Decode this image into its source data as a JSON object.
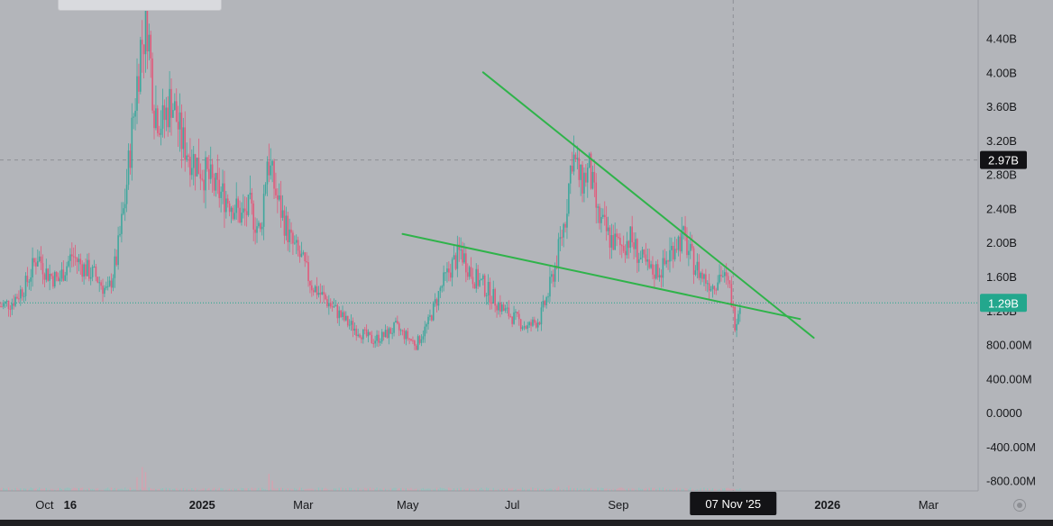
{
  "chart_data": {
    "type": "candlestick",
    "yaxis": {
      "ticks": [
        "4.40B",
        "4.00B",
        "3.60B",
        "3.20B",
        "2.80B",
        "2.40B",
        "2.00B",
        "1.60B",
        "1.20B",
        "800.00M",
        "400.00M",
        "0.0000",
        "-400.00M",
        "-800.00M"
      ],
      "tick_values": [
        4.4,
        4.0,
        3.6,
        3.2,
        2.8,
        2.4,
        2.0,
        1.6,
        1.2,
        0.8,
        0.4,
        0.0,
        -0.4,
        -0.8
      ],
      "ylim_billions": [
        -0.92,
        4.85
      ]
    },
    "xaxis": {
      "labels": [
        {
          "text": "Oct",
          "date": "2024-10-01",
          "bold": false
        },
        {
          "text": "16",
          "date": "2024-10-16",
          "bold": true
        },
        {
          "text": "2025",
          "date": "2025-01-01",
          "bold": true
        },
        {
          "text": "Mar",
          "date": "2025-03-01",
          "bold": false
        },
        {
          "text": "May",
          "date": "2025-05-01",
          "bold": false
        },
        {
          "text": "Jul",
          "date": "2025-07-01",
          "bold": false
        },
        {
          "text": "Sep",
          "date": "2025-09-01",
          "bold": false
        },
        {
          "text": "2026",
          "date": "2026-01-01",
          "bold": true
        },
        {
          "text": "Mar",
          "date": "2026-03-01",
          "bold": false
        }
      ],
      "xlim": [
        "2024-09-05",
        "2026-03-30"
      ]
    },
    "price_markers": [
      {
        "label": "2.97B",
        "value": 2.97,
        "style": "dark"
      },
      {
        "label": "1.29B",
        "value": 1.29,
        "style": "green"
      }
    ],
    "crosshair": {
      "date_label": "07 Nov '25",
      "date": "2025-11-07",
      "value": 2.97
    },
    "series_close_points": [
      [
        "2024-09-05",
        1.25
      ],
      [
        "2024-09-12",
        1.3
      ],
      [
        "2024-09-20",
        1.5
      ],
      [
        "2024-09-27",
        1.85
      ],
      [
        "2024-10-02",
        1.65
      ],
      [
        "2024-10-09",
        1.55
      ],
      [
        "2024-10-17",
        1.85
      ],
      [
        "2024-10-24",
        1.7
      ],
      [
        "2024-10-31",
        1.6
      ],
      [
        "2024-11-07",
        1.4
      ],
      [
        "2024-11-12",
        1.8
      ],
      [
        "2024-11-17",
        2.5
      ],
      [
        "2024-11-22",
        3.5
      ],
      [
        "2024-11-26",
        4.3
      ],
      [
        "2024-11-30",
        4.6
      ],
      [
        "2024-12-04",
        3.6
      ],
      [
        "2024-12-09",
        3.4
      ],
      [
        "2024-12-14",
        3.7
      ],
      [
        "2024-12-20",
        3.2
      ],
      [
        "2024-12-26",
        3.0
      ],
      [
        "2025-01-03",
        2.8
      ],
      [
        "2025-01-10",
        2.6
      ],
      [
        "2025-01-17",
        2.5
      ],
      [
        "2025-01-24",
        2.3
      ],
      [
        "2025-01-29",
        2.4
      ],
      [
        "2025-02-04",
        2.1
      ],
      [
        "2025-02-08",
        3.0
      ],
      [
        "2025-02-14",
        2.5
      ],
      [
        "2025-02-22",
        2.0
      ],
      [
        "2025-02-28",
        1.8
      ],
      [
        "2025-03-06",
        1.5
      ],
      [
        "2025-03-13",
        1.35
      ],
      [
        "2025-03-20",
        1.2
      ],
      [
        "2025-03-27",
        1.05
      ],
      [
        "2025-04-03",
        0.95
      ],
      [
        "2025-04-10",
        0.85
      ],
      [
        "2025-04-17",
        0.9
      ],
      [
        "2025-04-24",
        1.0
      ],
      [
        "2025-04-30",
        0.9
      ],
      [
        "2025-05-06",
        0.8
      ],
      [
        "2025-05-13",
        1.05
      ],
      [
        "2025-05-20",
        1.45
      ],
      [
        "2025-05-26",
        1.7
      ],
      [
        "2025-06-01",
        1.9
      ],
      [
        "2025-06-08",
        1.6
      ],
      [
        "2025-06-14",
        1.5
      ],
      [
        "2025-06-20",
        1.35
      ],
      [
        "2025-06-26",
        1.2
      ],
      [
        "2025-07-03",
        1.1
      ],
      [
        "2025-07-10",
        1.0
      ],
      [
        "2025-07-17",
        1.1
      ],
      [
        "2025-07-22",
        1.4
      ],
      [
        "2025-07-27",
        1.8
      ],
      [
        "2025-08-01",
        2.3
      ],
      [
        "2025-08-05",
        3.05
      ],
      [
        "2025-08-10",
        2.7
      ],
      [
        "2025-08-15",
        2.85
      ],
      [
        "2025-08-20",
        2.3
      ],
      [
        "2025-08-27",
        2.05
      ],
      [
        "2025-09-02",
        1.95
      ],
      [
        "2025-09-08",
        2.05
      ],
      [
        "2025-09-14",
        1.8
      ],
      [
        "2025-09-20",
        1.65
      ],
      [
        "2025-09-27",
        1.7
      ],
      [
        "2025-10-04",
        2.0
      ],
      [
        "2025-10-09",
        2.05
      ],
      [
        "2025-10-15",
        1.75
      ],
      [
        "2025-10-20",
        1.6
      ],
      [
        "2025-10-26",
        1.5
      ],
      [
        "2025-10-31",
        1.65
      ],
      [
        "2025-11-05",
        1.45
      ],
      [
        "2025-11-08",
        1.05
      ],
      [
        "2025-11-11",
        1.29
      ]
    ],
    "volume_spikes": [
      [
        "2024-11-24",
        0.16
      ],
      [
        "2024-11-27",
        0.28
      ],
      [
        "2024-11-29",
        0.22
      ],
      [
        "2025-02-09",
        0.2
      ],
      [
        "2025-02-11",
        0.12
      ],
      [
        "2025-07-28",
        0.05
      ],
      [
        "2025-08-03",
        0.06
      ]
    ],
    "trendlines": [
      {
        "name": "upper",
        "color": "#2fb34a",
        "points": [
          [
            "2025-06-14",
            4.0
          ],
          [
            "2025-12-24",
            0.88
          ]
        ]
      },
      {
        "name": "lower",
        "color": "#2fb34a",
        "points": [
          [
            "2025-04-28",
            2.1
          ],
          [
            "2025-12-16",
            1.1
          ]
        ]
      }
    ],
    "colors": {
      "up": "#3fa79d",
      "down": "#e05b7c",
      "volume_up": "#8fc4be",
      "volume_down": "#d7a0ae",
      "trendline": "#2fb34a",
      "background": "#b3b5ba",
      "marker_dark": "#131316",
      "marker_green": "#23a78d"
    }
  }
}
